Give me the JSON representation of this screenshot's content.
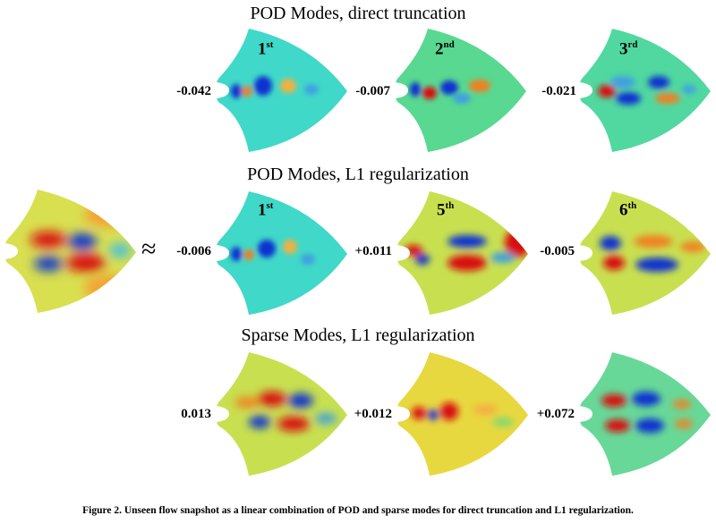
{
  "rows": [
    {
      "title": "POD Modes, direct truncation",
      "panels": [
        {
          "coef": "-0.042",
          "ord_num": "1",
          "ord_suf": "st",
          "style": "pod-1"
        },
        {
          "coef": "-0.007",
          "ord_num": "2",
          "ord_suf": "nd",
          "style": "pod-2"
        },
        {
          "coef": "-0.021",
          "ord_num": "3",
          "ord_suf": "rd",
          "style": "pod-3"
        }
      ]
    },
    {
      "title": "POD Modes, L1 regularization",
      "panels": [
        {
          "coef": "-0.006",
          "ord_num": "1",
          "ord_suf": "st",
          "style": "pod-1"
        },
        {
          "coef": "+0.011",
          "ord_num": "5",
          "ord_suf": "th",
          "style": "pod-5"
        },
        {
          "coef": "-0.005",
          "ord_num": "6",
          "ord_suf": "th",
          "style": "pod-6"
        }
      ]
    },
    {
      "title": "Sparse Modes, L1 regularization",
      "panels": [
        {
          "coef": "0.013",
          "ord_num": "",
          "ord_suf": "",
          "style": "sparse-1"
        },
        {
          "coef": "+0.012",
          "ord_num": "",
          "ord_suf": "",
          "style": "sparse-2"
        },
        {
          "coef": "+0.072",
          "ord_num": "",
          "ord_suf": "",
          "style": "sparse-3"
        }
      ]
    }
  ],
  "approx_symbol": "≈",
  "caption": "Figure 2.  Unseen flow snapshot as a linear combination of POD and sparse modes for direct truncation and L1 regularization.",
  "colors": {
    "background_cyan": "#40d8c8",
    "background_yellow": "#d8e050",
    "red": "#d81010",
    "blue": "#1030d0",
    "orange": "#f08020"
  }
}
